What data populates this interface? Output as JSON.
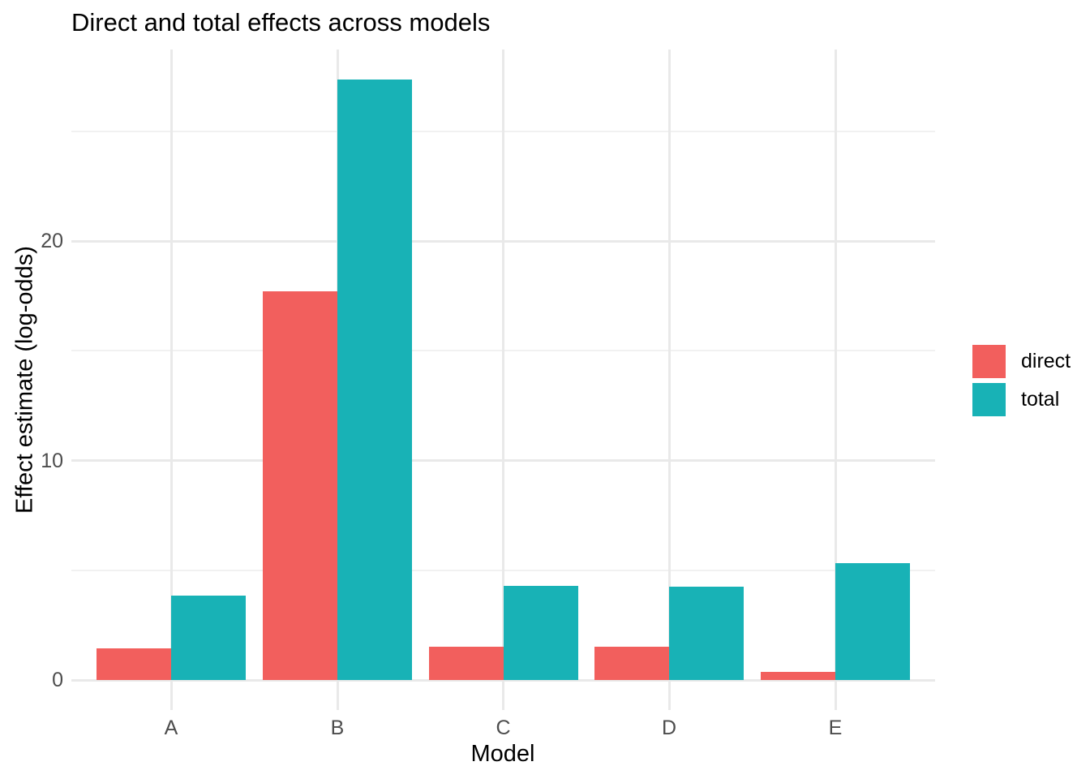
{
  "title": "Direct and total effects across models",
  "chart_data": {
    "type": "bar",
    "title": "Direct and total effects across models",
    "xlabel": "Model",
    "ylabel": "Effect estimate (log-odds)",
    "categories": [
      "A",
      "B",
      "C",
      "D",
      "E"
    ],
    "series": [
      {
        "name": "direct",
        "color": "#F25F5D",
        "values": [
          1.45,
          17.7,
          1.5,
          1.5,
          0.37
        ]
      },
      {
        "name": "total",
        "color": "#18B2B6",
        "values": [
          3.85,
          27.35,
          4.3,
          4.25,
          5.32
        ]
      }
    ],
    "y_ticks": [
      0,
      10,
      20
    ],
    "y_minor_ticks": [
      5,
      15,
      25
    ],
    "ylim": [
      0,
      27.35
    ],
    "bar_layout": "grouped-dodge",
    "grid": true,
    "legend_position": "right",
    "background_color": "#FFFFFF",
    "grid_major_color": "#E9E9E9",
    "grid_minor_color": "#F1F1F1",
    "tick_label_color": "#4D4D4D"
  },
  "legend": {
    "items": [
      {
        "label": "direct",
        "color": "#F25F5D"
      },
      {
        "label": "total",
        "color": "#18B2B6"
      }
    ]
  }
}
